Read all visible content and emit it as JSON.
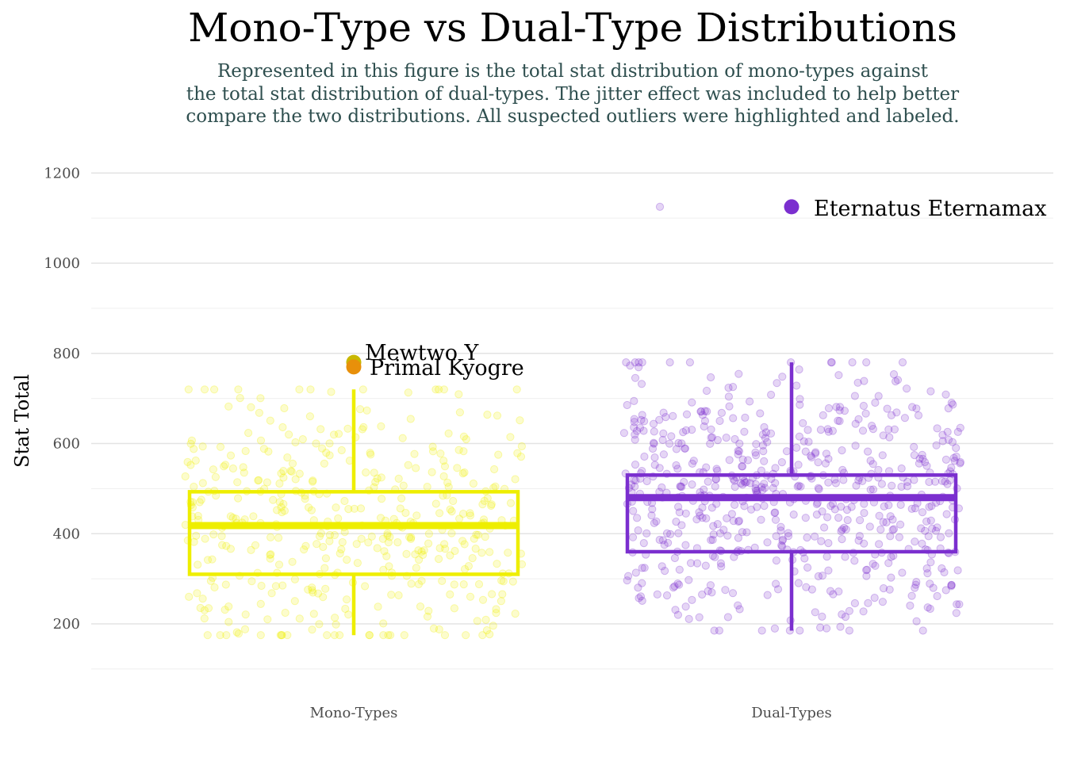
{
  "chart_data": {
    "type": "boxplot",
    "title": "Mono-Type vs Dual-Type Distributions",
    "subtitle_lines": [
      "Represented in this figure is the total stat distribution of mono-types against",
      "the total stat distribution of dual-types. The jitter effect was included to help better",
      "compare the two distributions. All suspected outliers were highlighted and labeled."
    ],
    "ylabel": "Stat Total",
    "xlabel": "",
    "ylim": [
      100,
      1210
    ],
    "yticks": [
      200,
      400,
      600,
      800,
      1000,
      1200
    ],
    "categories": [
      "Mono-Types",
      "Dual-Types"
    ],
    "grid": true,
    "series": [
      {
        "name": "Mono-Types",
        "color": "#eeee00",
        "box": {
          "whisker_low": 175,
          "q1": 310,
          "median": 418,
          "q3": 493,
          "whisker_high": 720
        },
        "jitter_count": 430,
        "jitter_range": [
          175,
          720
        ],
        "outliers": [
          {
            "label": "Mewtwo Y",
            "value": 780,
            "color": "#c9b800"
          },
          {
            "label": "Primal Kyogre",
            "value": 770,
            "color": "#e8900a"
          }
        ]
      },
      {
        "name": "Dual-Types",
        "color": "#7b2fcf",
        "box": {
          "whisker_low": 185,
          "q1": 360,
          "median": 480,
          "q3": 530,
          "whisker_high": 780
        },
        "jitter_count": 640,
        "jitter_range": [
          185,
          780
        ],
        "outliers": [
          {
            "label": "Eternatus Eternamax",
            "value": 1125,
            "color": "#7b2fcf"
          }
        ]
      }
    ]
  }
}
